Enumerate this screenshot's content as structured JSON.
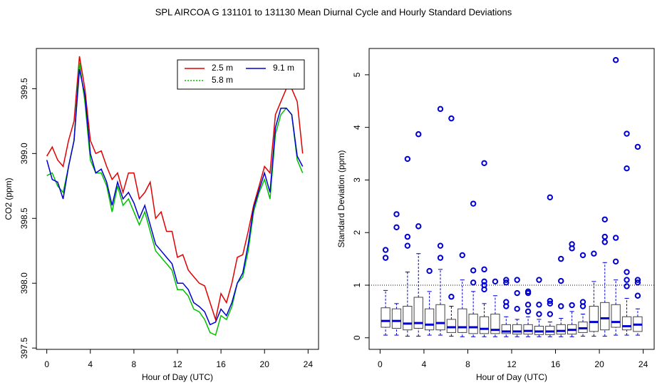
{
  "title": "SPL   AIRCOA G   131101 to 131130   Mean Diurnal Cycle and Hourly Standard Deviations",
  "chart_data": [
    {
      "type": "line",
      "xlabel": "Hour of Day (UTC)",
      "ylabel": "CO2 (ppm)",
      "x": [
        0,
        0.5,
        1,
        1.5,
        2,
        2.5,
        3,
        3.5,
        4,
        4.5,
        5,
        5.5,
        6,
        6.5,
        7,
        7.5,
        8,
        8.5,
        9,
        9.5,
        10,
        10.5,
        11,
        11.5,
        12,
        12.5,
        13,
        13.5,
        14,
        14.5,
        15,
        15.5,
        16,
        16.5,
        17,
        17.5,
        18,
        18.5,
        19,
        19.5,
        20,
        20.5,
        21,
        21.5,
        22,
        22.5,
        23,
        23.5
      ],
      "series": [
        {
          "name": "2.5 m",
          "color": "#e00000",
          "values": [
            398.98,
            399.05,
            398.95,
            398.9,
            399.1,
            399.25,
            399.75,
            399.5,
            399.1,
            399.0,
            399.02,
            398.9,
            398.8,
            398.85,
            398.7,
            398.85,
            398.85,
            398.65,
            398.7,
            398.78,
            398.5,
            398.55,
            398.4,
            398.4,
            398.2,
            398.22,
            398.1,
            398.05,
            398.0,
            397.98,
            397.85,
            397.72,
            397.92,
            397.85,
            398.0,
            398.2,
            398.22,
            398.4,
            398.6,
            398.75,
            398.9,
            398.85,
            399.3,
            399.4,
            399.5,
            399.5,
            399.4,
            399.0
          ]
        },
        {
          "name": "5.8 m",
          "color": "#00c000",
          "values": [
            398.83,
            398.85,
            398.75,
            398.7,
            398.9,
            399.1,
            399.7,
            399.4,
            398.95,
            398.85,
            398.85,
            398.75,
            398.55,
            398.75,
            398.6,
            398.65,
            398.55,
            398.45,
            398.55,
            398.4,
            398.25,
            398.2,
            398.15,
            398.1,
            397.95,
            397.95,
            397.9,
            397.8,
            397.78,
            397.72,
            397.62,
            397.6,
            397.75,
            397.72,
            397.82,
            398.0,
            398.05,
            398.25,
            398.55,
            398.7,
            398.8,
            398.65,
            399.15,
            399.3,
            399.35,
            399.3,
            398.95,
            398.85
          ]
        },
        {
          "name": "9.1 m",
          "color": "#0000d0",
          "values": [
            398.95,
            398.8,
            398.78,
            398.65,
            398.9,
            399.1,
            399.65,
            399.45,
            399.0,
            398.85,
            398.88,
            398.78,
            398.6,
            398.78,
            398.65,
            398.7,
            398.62,
            398.5,
            398.6,
            398.45,
            398.3,
            398.25,
            398.2,
            398.15,
            398.0,
            398.0,
            397.95,
            397.85,
            397.82,
            397.78,
            397.68,
            397.7,
            397.8,
            397.75,
            397.85,
            398.0,
            398.08,
            398.3,
            398.58,
            398.72,
            398.85,
            398.7,
            399.2,
            399.35,
            399.35,
            399.3,
            398.98,
            398.9
          ]
        }
      ],
      "legend": "top-right",
      "xlim": [
        -0.96,
        24.96
      ],
      "xticks": [
        0,
        4,
        8,
        12,
        16,
        20,
        24
      ],
      "ylim": [
        397.49,
        399.81
      ],
      "yticks": [
        397.5,
        {
          "value": 398,
          "label": "398.0"
        },
        398.5,
        {
          "value": 399,
          "label": "399.0"
        },
        399.5
      ]
    },
    {
      "type": "box",
      "xlabel": "Hour of Day (UTC)",
      "ylabel": "Standard Deviation (ppm)",
      "color": "#0000d0",
      "hline": 1,
      "boxes": [
        {
          "x": 0.5,
          "whislo": 0.05,
          "q1": 0.2,
          "med": 0.32,
          "q3": 0.57,
          "whishi": 0.9,
          "fliers": [
            1.52,
            1.67
          ]
        },
        {
          "x": 1.5,
          "whislo": 0.05,
          "q1": 0.18,
          "med": 0.32,
          "q3": 0.55,
          "whishi": 0.65,
          "fliers": [
            2.1,
            2.35
          ]
        },
        {
          "x": 2.5,
          "whislo": 0.03,
          "q1": 0.15,
          "med": 0.27,
          "q3": 0.6,
          "whishi": 1.25,
          "fliers": [
            1.75,
            1.92,
            3.4
          ]
        },
        {
          "x": 3.5,
          "whislo": 0.03,
          "q1": 0.18,
          "med": 0.28,
          "q3": 0.77,
          "whishi": 1.6,
          "fliers": [
            2.12,
            3.87
          ]
        },
        {
          "x": 4.5,
          "whislo": 0.05,
          "q1": 0.15,
          "med": 0.25,
          "q3": 0.55,
          "whishi": 0.88,
          "fliers": [
            1.27
          ]
        },
        {
          "x": 5.5,
          "whislo": 0.05,
          "q1": 0.15,
          "med": 0.28,
          "q3": 0.63,
          "whishi": 1.3,
          "fliers": [
            1.52,
            1.75,
            4.35
          ]
        },
        {
          "x": 6.5,
          "whislo": 0.03,
          "q1": 0.1,
          "med": 0.2,
          "q3": 0.35,
          "whishi": 0.6,
          "fliers": [
            0.78,
            4.17
          ]
        },
        {
          "x": 7.5,
          "whislo": 0.02,
          "q1": 0.1,
          "med": 0.2,
          "q3": 0.55,
          "whishi": 1.1,
          "fliers": [
            1.57
          ]
        },
        {
          "x": 8.5,
          "whislo": 0.02,
          "q1": 0.08,
          "med": 0.2,
          "q3": 0.45,
          "whishi": 0.88,
          "fliers": [
            1.05,
            1.28,
            2.55
          ]
        },
        {
          "x": 9.5,
          "whislo": 0.02,
          "q1": 0.08,
          "med": 0.17,
          "q3": 0.4,
          "whishi": 0.65,
          "fliers": [
            0.92,
            1.0,
            1.07,
            1.3,
            3.32
          ]
        },
        {
          "x": 10.5,
          "whislo": 0.02,
          "q1": 0.08,
          "med": 0.15,
          "q3": 0.45,
          "whishi": 0.8,
          "fliers": [
            1.07
          ]
        },
        {
          "x": 11.5,
          "whislo": 0.02,
          "q1": 0.08,
          "med": 0.12,
          "q3": 0.25,
          "whishi": 0.4,
          "fliers": [
            0.6,
            0.68,
            1.05,
            1.1
          ]
        },
        {
          "x": 12.5,
          "whislo": 0.02,
          "q1": 0.07,
          "med": 0.12,
          "q3": 0.25,
          "whishi": 0.35,
          "fliers": [
            0.55,
            0.85,
            1.1
          ]
        },
        {
          "x": 13.5,
          "whislo": 0.02,
          "q1": 0.07,
          "med": 0.13,
          "q3": 0.25,
          "whishi": 0.4,
          "fliers": [
            0.5,
            0.63,
            0.85,
            0.88
          ]
        },
        {
          "x": 14.5,
          "whislo": 0.02,
          "q1": 0.06,
          "med": 0.12,
          "q3": 0.22,
          "whishi": 0.35,
          "fliers": [
            0.45,
            0.63,
            1.1
          ]
        },
        {
          "x": 15.5,
          "whislo": 0.02,
          "q1": 0.06,
          "med": 0.12,
          "q3": 0.22,
          "whishi": 0.3,
          "fliers": [
            0.45,
            0.65,
            0.7,
            2.67
          ]
        },
        {
          "x": 16.5,
          "whislo": 0.02,
          "q1": 0.07,
          "med": 0.13,
          "q3": 0.25,
          "whishi": 0.37,
          "fliers": [
            0.6,
            1.08,
            1.5
          ]
        },
        {
          "x": 17.5,
          "whislo": 0.02,
          "q1": 0.07,
          "med": 0.15,
          "q3": 0.25,
          "whishi": 0.5,
          "fliers": [
            0.62,
            1.7,
            1.78
          ]
        },
        {
          "x": 18.5,
          "whislo": 0.03,
          "q1": 0.1,
          "med": 0.18,
          "q3": 0.3,
          "whishi": 0.45,
          "fliers": [
            0.6,
            0.68,
            1.57
          ]
        },
        {
          "x": 19.5,
          "whislo": 0.03,
          "q1": 0.12,
          "med": 0.3,
          "q3": 0.6,
          "whishi": 1.07,
          "fliers": [
            1.6
          ]
        },
        {
          "x": 20.5,
          "whislo": 0.03,
          "q1": 0.15,
          "med": 0.37,
          "q3": 0.67,
          "whishi": 1.43,
          "fliers": [
            1.82,
            1.92,
            2.25
          ]
        },
        {
          "x": 21.5,
          "whislo": 0.05,
          "q1": 0.2,
          "med": 0.3,
          "q3": 0.63,
          "whishi": 1.1,
          "fliers": [
            1.45,
            1.9,
            5.28
          ]
        },
        {
          "x": 22.5,
          "whislo": 0.05,
          "q1": 0.15,
          "med": 0.22,
          "q3": 0.4,
          "whishi": 0.75,
          "fliers": [
            0.98,
            1.1,
            1.25,
            3.22,
            3.88
          ]
        },
        {
          "x": 23.5,
          "whislo": 0.05,
          "q1": 0.12,
          "med": 0.25,
          "q3": 0.4,
          "whishi": 0.55,
          "fliers": [
            0.8,
            1.05,
            1.1,
            3.63
          ]
        }
      ],
      "xlim": [
        -1,
        25
      ],
      "xticks": [
        0,
        4,
        8,
        12,
        16,
        20,
        24
      ],
      "ylim": [
        -0.22,
        5.5
      ],
      "yticks": [
        0,
        1,
        2,
        3,
        4,
        5
      ]
    }
  ]
}
